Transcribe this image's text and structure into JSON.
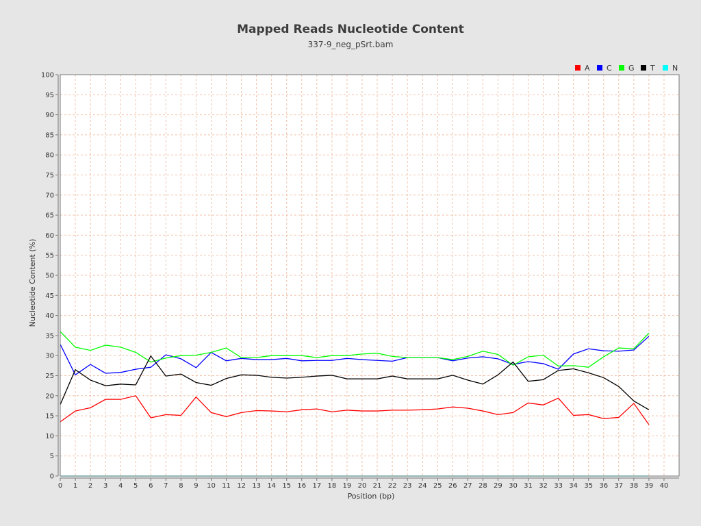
{
  "chart_data": {
    "type": "line",
    "title": "Mapped Reads Nucleotide Content",
    "subtitle": "337-9_neg_pSrt.bam",
    "xlabel": "Position (bp)",
    "ylabel": "Nucleotide Content (%)",
    "xlim": [
      0,
      41
    ],
    "ylim": [
      0,
      100
    ],
    "x_ticks": [
      "0",
      "1",
      "2",
      "3",
      "4",
      "5",
      "6",
      "7",
      "8",
      "9",
      "10",
      "11",
      "12",
      "13",
      "14",
      "15",
      "16",
      "17",
      "18",
      "19",
      "20",
      "21",
      "22",
      "23",
      "24",
      "25",
      "26",
      "27",
      "28",
      "29",
      "30",
      "31",
      "32",
      "33",
      "34",
      "35",
      "36",
      "37",
      "38",
      "39",
      "40"
    ],
    "y_ticks": [
      "0",
      "5",
      "10",
      "15",
      "20",
      "25",
      "30",
      "35",
      "40",
      "45",
      "50",
      "55",
      "60",
      "65",
      "70",
      "75",
      "80",
      "85",
      "90",
      "95",
      "100"
    ],
    "grid": true,
    "legend_position": "top-right",
    "x": [
      0,
      1,
      2,
      3,
      4,
      5,
      6,
      7,
      8,
      9,
      10,
      11,
      12,
      13,
      14,
      15,
      16,
      17,
      18,
      19,
      20,
      21,
      22,
      23,
      24,
      25,
      26,
      27,
      28,
      29,
      30,
      31,
      32,
      33,
      34,
      35,
      36,
      37,
      38,
      39
    ],
    "series": [
      {
        "name": "A",
        "color": "#ff0000",
        "values": [
          13.5,
          16.2,
          17.0,
          19.1,
          19.1,
          20.0,
          14.5,
          15.3,
          15.1,
          19.7,
          15.8,
          14.8,
          15.8,
          16.3,
          16.2,
          16.0,
          16.5,
          16.7,
          16.0,
          16.4,
          16.2,
          16.2,
          16.4,
          16.4,
          16.5,
          16.7,
          17.2,
          16.9,
          16.2,
          15.3,
          15.8,
          18.2,
          17.7,
          19.4,
          15.1,
          15.3,
          14.3,
          14.6,
          18.1,
          12.8
        ]
      },
      {
        "name": "C",
        "color": "#0000ff",
        "values": [
          32.8,
          25.2,
          27.8,
          25.6,
          25.8,
          26.6,
          27.1,
          30.2,
          29.2,
          27.0,
          30.8,
          28.7,
          29.3,
          29.0,
          29.0,
          29.3,
          28.7,
          28.8,
          28.8,
          29.3,
          29.0,
          28.8,
          28.6,
          29.5,
          29.5,
          29.5,
          28.7,
          29.4,
          29.7,
          29.2,
          27.8,
          28.5,
          28.0,
          26.6,
          30.4,
          31.7,
          31.2,
          31.1,
          31.4,
          34.8
        ]
      },
      {
        "name": "G",
        "color": "#00ff00",
        "values": [
          36.0,
          32.1,
          31.3,
          32.6,
          32.1,
          30.8,
          28.4,
          29.4,
          30.0,
          30.1,
          30.8,
          31.9,
          29.5,
          29.5,
          30.0,
          30.0,
          30.0,
          29.5,
          30.0,
          30.0,
          30.4,
          30.6,
          29.8,
          29.5,
          29.5,
          29.5,
          29.0,
          29.8,
          31.1,
          30.3,
          27.6,
          29.7,
          30.1,
          27.4,
          27.5,
          27.1,
          29.7,
          31.9,
          31.7,
          35.6
        ]
      },
      {
        "name": "T",
        "color": "#000000",
        "values": [
          17.8,
          26.5,
          23.9,
          22.5,
          22.9,
          22.7,
          29.9,
          24.9,
          25.4,
          23.3,
          22.6,
          24.3,
          25.2,
          25.1,
          24.6,
          24.4,
          24.6,
          24.9,
          25.1,
          24.2,
          24.2,
          24.2,
          24.9,
          24.2,
          24.2,
          24.2,
          25.1,
          23.9,
          22.9,
          25.2,
          28.4,
          23.6,
          24.0,
          26.3,
          26.7,
          25.7,
          24.5,
          22.3,
          18.7,
          16.5
        ]
      },
      {
        "name": "N",
        "color": "#00ffff",
        "values": [
          0,
          0,
          0,
          0,
          0,
          0,
          0,
          0,
          0,
          0,
          0,
          0,
          0,
          0,
          0,
          0,
          0,
          0,
          0,
          0,
          0,
          0,
          0,
          0,
          0,
          0,
          0,
          0,
          0,
          0,
          0,
          0,
          0,
          0,
          0,
          0,
          0,
          0,
          0,
          0
        ]
      }
    ]
  }
}
